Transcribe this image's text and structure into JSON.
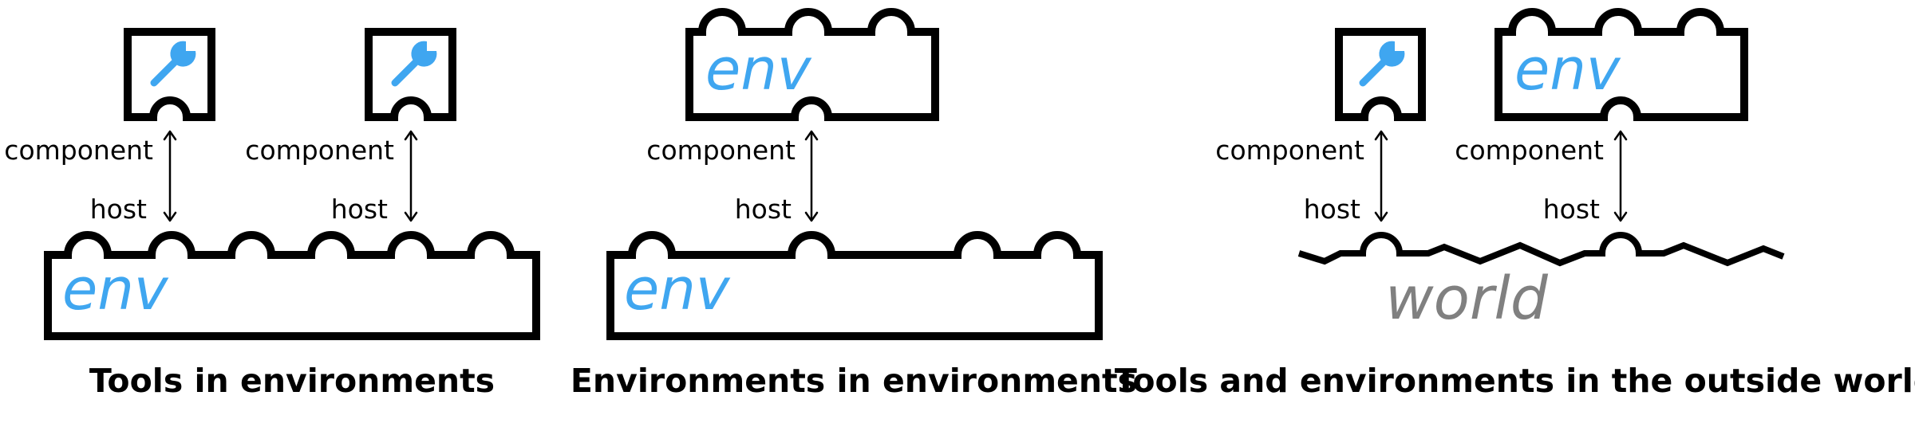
{
  "colors": {
    "env_text": "#3fa6f0",
    "world_text": "#808080",
    "wrench_icon": "#3fa6f0",
    "outline": "#000000"
  },
  "icons": [
    "wrench-icon"
  ],
  "panels": [
    {
      "caption": "Tools in environments",
      "env_label": "env",
      "connections": [
        {
          "component_label": "component",
          "host_label": "host"
        },
        {
          "component_label": "component",
          "host_label": "host"
        }
      ]
    },
    {
      "caption": "Environments in environments",
      "component_env_label": "env",
      "env_label": "env",
      "connections": [
        {
          "component_label": "component",
          "host_label": "host"
        }
      ]
    },
    {
      "caption": "Tools and environments in the outside world",
      "component_env_label": "env",
      "world_label": "world",
      "connections": [
        {
          "component_label": "component",
          "host_label": "host"
        },
        {
          "component_label": "component",
          "host_label": "host"
        }
      ]
    }
  ]
}
